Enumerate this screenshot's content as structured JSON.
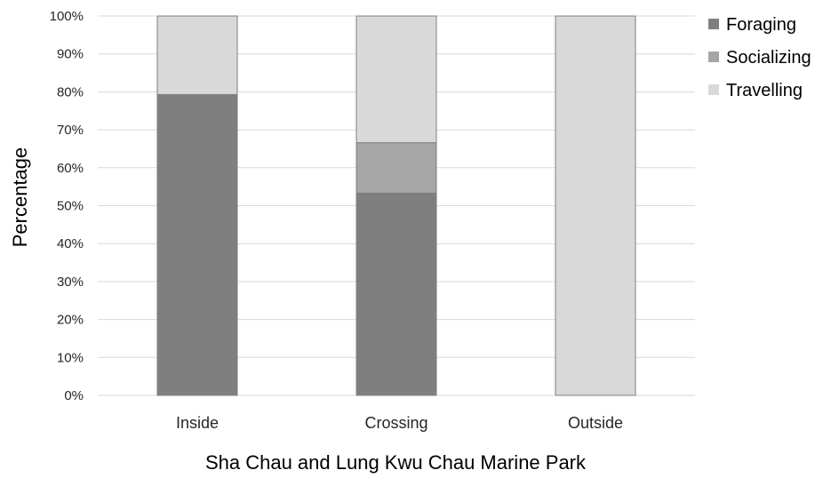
{
  "chart_data": {
    "type": "bar",
    "stacked": true,
    "categories": [
      "Inside",
      "Crossing",
      "Outside"
    ],
    "series": [
      {
        "name": "Foraging",
        "values": [
          79.3,
          53.3,
          0
        ],
        "color": "#7f7f7f"
      },
      {
        "name": "Socializing",
        "values": [
          0,
          13.3,
          0
        ],
        "color": "#a6a6a6"
      },
      {
        "name": "Travelling",
        "values": [
          20.7,
          33.4,
          100
        ],
        "color": "#d9d9d9"
      }
    ],
    "y_ticks": [
      "0%",
      "10%",
      "20%",
      "30%",
      "40%",
      "50%",
      "60%",
      "70%",
      "80%",
      "90%",
      "100%"
    ],
    "ylim": [
      0,
      100
    ],
    "xlabel": "Sha Chau and Lung Kwu Chau Marine Park",
    "ylabel": "Percentage",
    "grid": true,
    "legend_position": "top-right"
  }
}
